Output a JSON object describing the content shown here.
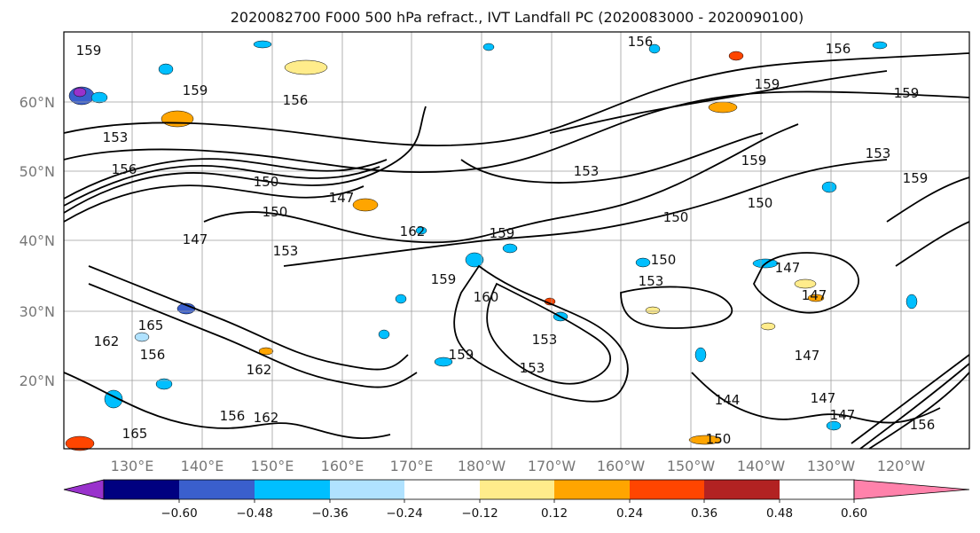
{
  "title": "2020082700 F000 500 hPa refract., IVT Landfall PC (2020083000 - 2020090100)",
  "map": {
    "lat_labels": [
      "60°N",
      "50°N",
      "40°N",
      "30°N",
      "20°N"
    ],
    "lon_labels": [
      "130°E",
      "140°E",
      "150°E",
      "160°E",
      "170°E",
      "180°W",
      "170°W",
      "160°W",
      "150°W",
      "140°W",
      "130°W",
      "120°W"
    ],
    "gridlines": true,
    "contour_color": "#000000",
    "contour_labels": [
      {
        "text": "159"
      },
      {
        "text": "159"
      },
      {
        "text": "156"
      },
      {
        "text": "156"
      },
      {
        "text": "156"
      },
      {
        "text": "159"
      },
      {
        "text": "159"
      },
      {
        "text": "153"
      },
      {
        "text": "153"
      },
      {
        "text": "159"
      },
      {
        "text": "153"
      },
      {
        "text": "156"
      },
      {
        "text": "150"
      },
      {
        "text": "150"
      },
      {
        "text": "147"
      },
      {
        "text": "147"
      },
      {
        "text": "153"
      },
      {
        "text": "162"
      },
      {
        "text": "159"
      },
      {
        "text": "150"
      },
      {
        "text": "150"
      },
      {
        "text": "147"
      },
      {
        "text": "147"
      },
      {
        "text": "153"
      },
      {
        "text": "153"
      },
      {
        "text": "153"
      },
      {
        "text": "147"
      },
      {
        "text": "144"
      },
      {
        "text": "147"
      },
      {
        "text": "147"
      },
      {
        "text": "150"
      },
      {
        "text": "162"
      },
      {
        "text": "165"
      },
      {
        "text": "162"
      },
      {
        "text": "156"
      },
      {
        "text": "165"
      },
      {
        "text": "162"
      },
      {
        "text": "156"
      },
      {
        "text": "159"
      },
      {
        "text": "159"
      },
      {
        "text": "156"
      },
      {
        "text": "159"
      },
      {
        "text": "160"
      },
      {
        "text": "150"
      }
    ]
  },
  "colorbar": {
    "ticks": [
      "−0.60",
      "−0.48",
      "−0.36",
      "−0.24",
      "−0.12",
      "0.12",
      "0.24",
      "0.36",
      "0.48",
      "0.60"
    ],
    "colors": [
      "#9932cc",
      "#000080",
      "#3a5fcd",
      "#00bfff",
      "#b0e2ff",
      "#ffffff",
      "#ffec8b",
      "#ffa500",
      "#ff4500",
      "#b22222",
      "#ff82ab"
    ]
  }
}
